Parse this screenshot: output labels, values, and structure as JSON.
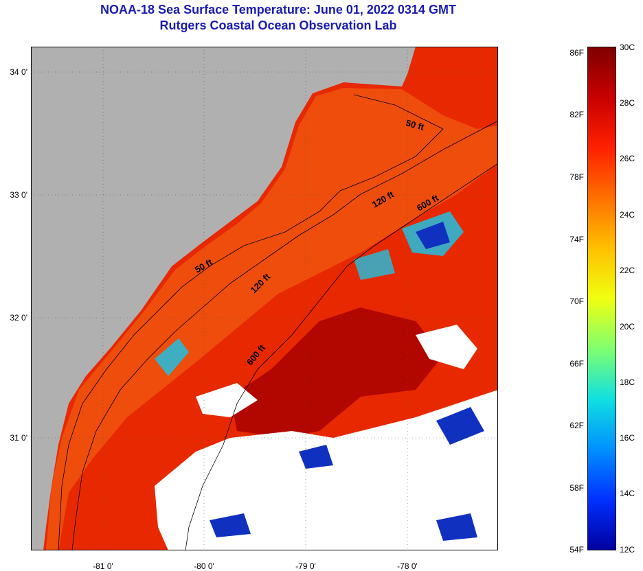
{
  "header": {
    "title": "NOAA-18 Sea Surface Temperature:  June 01, 2022 0314 GMT",
    "subtitle": "Rutgers Coastal Ocean Observation Lab"
  },
  "map": {
    "latitude_labels": [
      "34 0'",
      "33 0'",
      "32 0'",
      "31 0'"
    ],
    "longitude_labels": [
      "-81 0'",
      "-80 0'",
      "-79 0'",
      "-78 0'"
    ],
    "isobath_labels": [
      "50 ft",
      "120 ft",
      "600 ft",
      "50 ft",
      "120 ft",
      "600 ft"
    ],
    "colors": {
      "land": "#b0b0b0",
      "cloud": "#ffffff",
      "warm": "#e82800",
      "hot": "#a80000",
      "shelf": "#f05a10",
      "cold": "#1030c0",
      "cool": "#20c0e0"
    }
  },
  "colorbar": {
    "fahrenheit_labels": [
      "86F",
      "82F",
      "78F",
      "74F",
      "70F",
      "66F",
      "62F",
      "58F",
      "54F"
    ],
    "celsius_labels": [
      "30C",
      "28C",
      "26C",
      "24C",
      "22C",
      "20C",
      "18C",
      "16C",
      "14C",
      "12C"
    ],
    "gradient": [
      "#800000",
      "#c80000",
      "#ff2000",
      "#ff7000",
      "#ffc000",
      "#f0ff10",
      "#80ff70",
      "#10e0e0",
      "#0090ff",
      "#0030ff",
      "#0000a0"
    ]
  }
}
